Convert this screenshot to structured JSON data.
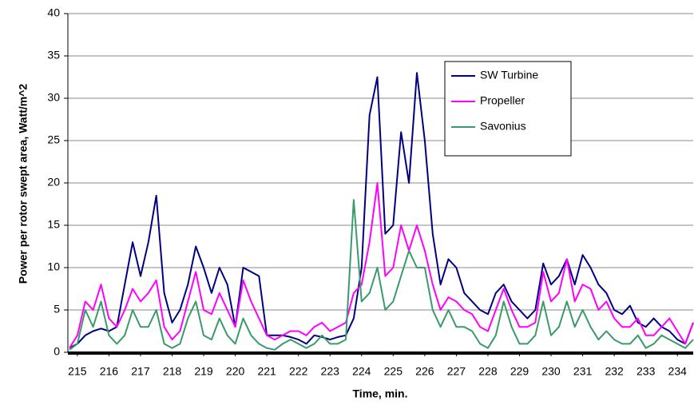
{
  "chart_data": {
    "type": "line",
    "xlabel": "Time, min.",
    "ylabel": "Power per rotor swept area, Watt/m^2",
    "x": [
      214.75,
      215,
      215.25,
      215.5,
      215.75,
      216,
      216.25,
      216.5,
      216.75,
      217,
      217.25,
      217.5,
      217.75,
      218,
      218.25,
      218.5,
      218.75,
      219,
      219.25,
      219.5,
      219.75,
      220,
      220.25,
      220.5,
      220.75,
      221,
      221.25,
      221.5,
      221.75,
      222,
      222.25,
      222.5,
      222.75,
      223,
      223.25,
      223.5,
      223.75,
      224,
      224.25,
      224.5,
      224.75,
      225,
      225.25,
      225.5,
      225.75,
      226,
      226.25,
      226.5,
      226.75,
      227,
      227.25,
      227.5,
      227.75,
      228,
      228.25,
      228.5,
      228.75,
      229,
      229.25,
      229.5,
      229.75,
      230,
      230.25,
      230.5,
      230.75,
      231,
      231.25,
      231.5,
      231.75,
      232,
      232.25,
      232.5,
      232.75,
      233,
      233.25,
      233.5,
      233.75,
      234,
      234.25,
      234.5
    ],
    "series": [
      {
        "name": "SW Turbine",
        "color": "#000080",
        "values": [
          0.5,
          1,
          2,
          2.5,
          2.8,
          2.5,
          3,
          8,
          13,
          9,
          13,
          18.5,
          7,
          3.5,
          5,
          8,
          12.5,
          10,
          7,
          10,
          8,
          3,
          10,
          9.5,
          9,
          2,
          2,
          2,
          1.8,
          1.5,
          1,
          2,
          1.8,
          1.5,
          1.8,
          2,
          4,
          10,
          28,
          32.5,
          14,
          15,
          26,
          20,
          33,
          25,
          14,
          8,
          11,
          10,
          7,
          6,
          5,
          4.5,
          7,
          8,
          6,
          5,
          4,
          5,
          10.5,
          8,
          9,
          11,
          8,
          11.5,
          10,
          8,
          7,
          5,
          4.5,
          5.5,
          3.5,
          3,
          4,
          3,
          2.5,
          1.5,
          1,
          3.5
        ]
      },
      {
        "name": "Propeller",
        "color": "#ff00ff",
        "values": [
          0.5,
          2,
          6,
          5,
          8,
          4,
          3,
          5,
          7.5,
          6,
          7,
          8.5,
          3,
          1.5,
          2.5,
          6,
          9.5,
          5,
          4.5,
          7,
          5,
          3,
          8.5,
          6,
          4,
          2,
          1.5,
          2,
          2.5,
          2.5,
          2,
          3,
          3.5,
          2.5,
          3,
          3.5,
          7,
          8,
          13,
          20,
          9,
          10,
          15,
          12,
          15,
          12,
          8,
          5,
          6.5,
          6,
          5,
          4.5,
          3,
          2.5,
          5,
          7.5,
          5,
          3,
          3,
          3.5,
          9.5,
          6,
          7,
          11,
          6,
          8,
          7.5,
          5,
          6,
          4,
          3,
          3,
          4,
          2,
          2,
          3,
          4,
          2.5,
          1,
          3.5
        ]
      },
      {
        "name": "Savonius",
        "color": "#3a9a6a",
        "values": [
          0.3,
          1,
          5,
          3,
          6,
          2,
          1,
          2,
          5,
          3,
          3,
          5,
          1,
          0.5,
          1,
          4,
          6,
          2,
          1.5,
          4,
          2,
          1,
          4,
          2,
          1,
          0.5,
          0.3,
          1,
          1.5,
          1,
          0.5,
          1,
          2,
          1,
          1,
          1.5,
          18,
          6,
          7,
          10,
          5,
          6,
          9,
          12,
          10,
          10,
          5,
          3,
          5,
          3,
          3,
          2.5,
          1,
          0.5,
          2,
          6,
          3,
          1,
          1,
          2,
          6,
          2,
          3,
          6,
          3,
          5,
          3,
          1.5,
          2.5,
          1.5,
          1,
          1,
          2,
          0.5,
          1,
          2,
          1.5,
          1,
          0.5,
          1.5
        ]
      }
    ],
    "xlim": [
      214.7,
      234.5
    ],
    "xticks": [
      215,
      216,
      217,
      218,
      219,
      220,
      221,
      222,
      223,
      224,
      225,
      226,
      227,
      228,
      229,
      230,
      231,
      232,
      233,
      234
    ],
    "ylim": [
      0,
      40
    ],
    "yticks": [
      0,
      5,
      10,
      15,
      20,
      25,
      30,
      35,
      40
    ],
    "grid": true,
    "legend": "upper right"
  }
}
